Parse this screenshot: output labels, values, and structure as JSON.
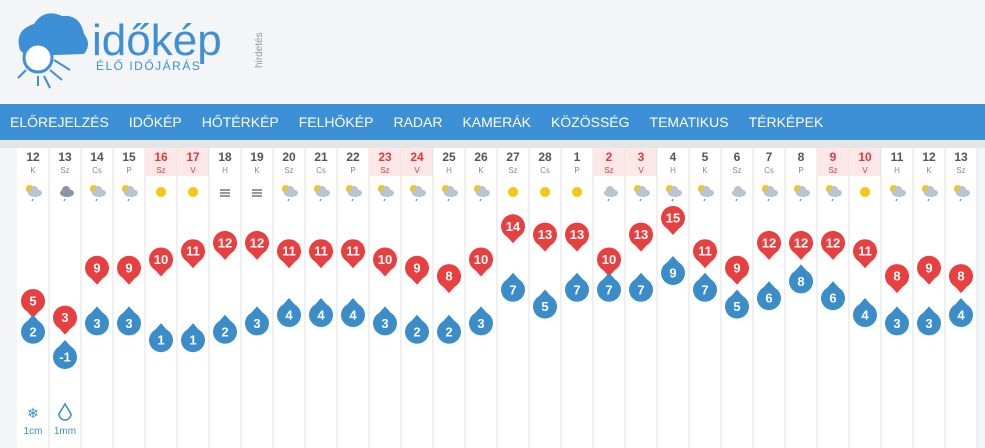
{
  "header": {
    "logo": "időkép",
    "tagline": "ÉLŐ IDŐJÁRÁS",
    "ad": "hirdetés"
  },
  "nav": [
    "ELŐREJELZÉS",
    "IDŐKÉP",
    "HŐTÉRKÉP",
    "FELHŐKÉP",
    "RADAR",
    "KAMERÁK",
    "KÖZÖSSÉG",
    "TEMATIKUS",
    "TÉRKÉPEK"
  ],
  "forecast": {
    "days": [
      {
        "date": "12",
        "weekday": "K",
        "max": 5,
        "min": 2
      },
      {
        "date": "13",
        "weekday": "Sz",
        "max": 3,
        "min": -1
      },
      {
        "date": "14",
        "weekday": "Cs",
        "max": 9,
        "min": 3
      },
      {
        "date": "15",
        "weekday": "P",
        "max": 9,
        "min": 3
      },
      {
        "date": "16",
        "weekday": "Sz",
        "max": 10,
        "min": 1
      },
      {
        "date": "17",
        "weekday": "V",
        "max": 11,
        "min": 1
      },
      {
        "date": "18",
        "weekday": "H",
        "max": 12,
        "min": 2
      },
      {
        "date": "19",
        "weekday": "K",
        "max": 12,
        "min": 3
      },
      {
        "date": "20",
        "weekday": "Sz",
        "max": 11,
        "min": 4
      },
      {
        "date": "21",
        "weekday": "Cs",
        "max": 11,
        "min": 4
      },
      {
        "date": "22",
        "weekday": "P",
        "max": 11,
        "min": 4
      },
      {
        "date": "23",
        "weekday": "Sz",
        "max": 10,
        "min": 3
      },
      {
        "date": "24",
        "weekday": "V",
        "max": 9,
        "min": 2
      },
      {
        "date": "25",
        "weekday": "H",
        "max": 8,
        "min": 2
      },
      {
        "date": "26",
        "weekday": "K",
        "max": 10,
        "min": 3
      },
      {
        "date": "27",
        "weekday": "Sz",
        "max": 14,
        "min": 7
      },
      {
        "date": "28",
        "weekday": "Cs",
        "max": 13,
        "min": 5
      },
      {
        "date": "1",
        "weekday": "P",
        "max": 13,
        "min": 7
      },
      {
        "date": "2",
        "weekday": "Sz",
        "max": 10,
        "min": 7
      },
      {
        "date": "3",
        "weekday": "V",
        "max": 13,
        "min": 7
      },
      {
        "date": "4",
        "weekday": "H",
        "max": 15,
        "min": 9
      },
      {
        "date": "5",
        "weekday": "K",
        "max": 11,
        "min": 7
      },
      {
        "date": "6",
        "weekday": "Sz",
        "max": 9,
        "min": 5
      },
      {
        "date": "7",
        "weekday": "Cs",
        "max": 12,
        "min": 6
      },
      {
        "date": "8",
        "weekday": "P",
        "max": 12,
        "min": 8
      },
      {
        "date": "9",
        "weekday": "Sz",
        "max": 12,
        "min": 6
      },
      {
        "date": "10",
        "weekday": "V",
        "max": 11,
        "min": 4
      },
      {
        "date": "11",
        "weekday": "H",
        "max": 8,
        "min": 3
      },
      {
        "date": "12",
        "weekday": "K",
        "max": 9,
        "min": 3
      },
      {
        "date": "13",
        "weekday": "Sz",
        "max": 8,
        "min": 4
      }
    ],
    "snow": "1cm",
    "rain": "1mm"
  }
}
